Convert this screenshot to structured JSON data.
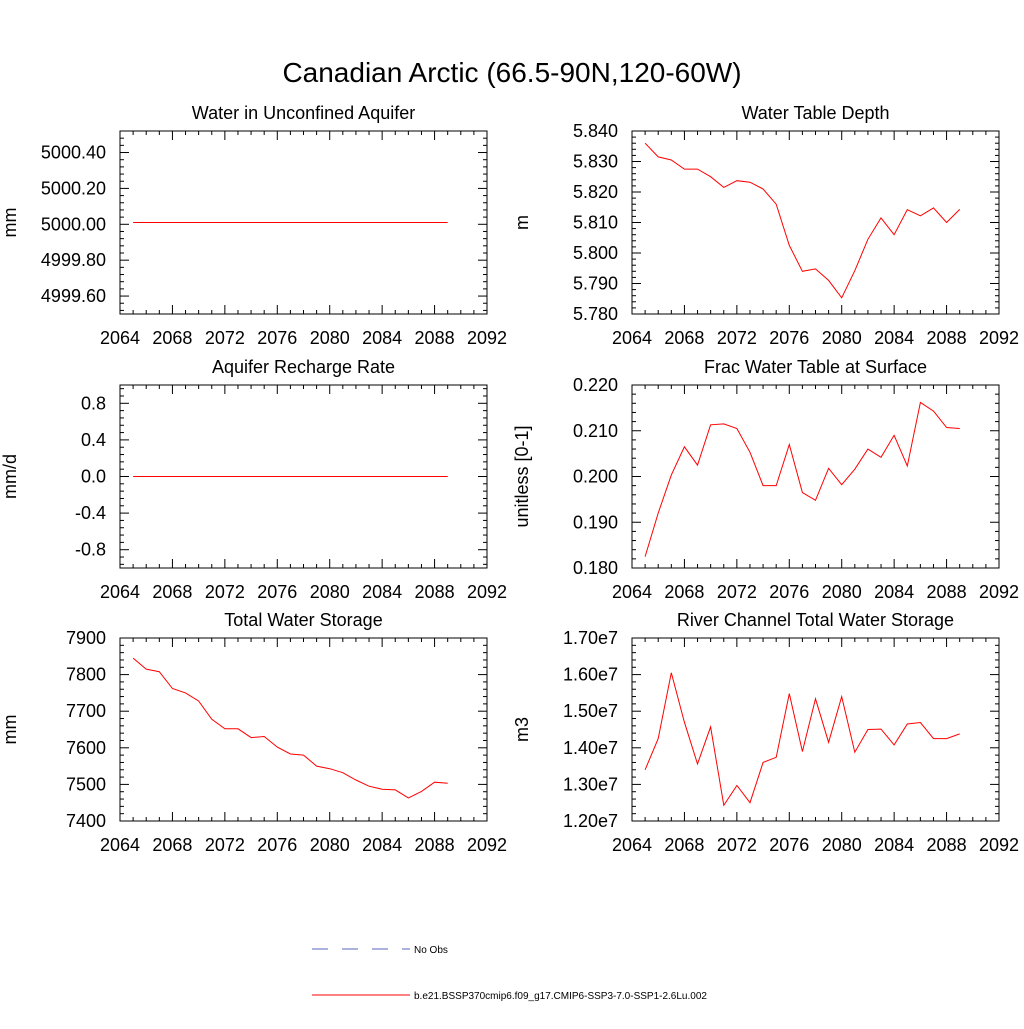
{
  "title": "Canadian Arctic (66.5-90N,120-60W)",
  "colors": {
    "model": "#ff0000",
    "obs": "#5566bb",
    "axis": "#000000"
  },
  "legend": {
    "obs_label": "No Obs",
    "model_label": "b.e21.BSSP370cmip6.f09_g17.CMIP6-SSP3-7.0-SSP1-2.6Lu.002"
  },
  "chart_data": [
    {
      "type": "line",
      "title": "Water in Unconfined Aquifer",
      "ylabel": "mm",
      "xlim": [
        2064,
        2092
      ],
      "ylim": [
        4999.5,
        5000.52
      ],
      "xticks": [
        2064,
        2068,
        2072,
        2076,
        2080,
        2084,
        2088,
        2092
      ],
      "yticks": [
        4999.6,
        4999.8,
        5000.0,
        5000.2,
        5000.4
      ],
      "ytick_labels": [
        "4999.60",
        "4999.80",
        "5000.00",
        "5000.20",
        "5000.40"
      ],
      "series": [
        {
          "x": [
            2065,
            2066,
            2067,
            2068,
            2069,
            2070,
            2071,
            2072,
            2073,
            2074,
            2075,
            2076,
            2077,
            2078,
            2079,
            2080,
            2081,
            2082,
            2083,
            2084,
            2085,
            2086,
            2087,
            2088,
            2089
          ],
          "y": [
            5000.01,
            5000.01,
            5000.01,
            5000.01,
            5000.01,
            5000.01,
            5000.01,
            5000.01,
            5000.01,
            5000.01,
            5000.01,
            5000.01,
            5000.01,
            5000.01,
            5000.01,
            5000.01,
            5000.01,
            5000.01,
            5000.01,
            5000.01,
            5000.01,
            5000.01,
            5000.01,
            5000.01,
            5000.01
          ]
        }
      ]
    },
    {
      "type": "line",
      "title": "Water Table Depth",
      "ylabel": "m",
      "xlim": [
        2064,
        2092
      ],
      "ylim": [
        5.78,
        5.84
      ],
      "xticks": [
        2064,
        2068,
        2072,
        2076,
        2080,
        2084,
        2088,
        2092
      ],
      "yticks": [
        5.78,
        5.79,
        5.8,
        5.81,
        5.82,
        5.83,
        5.84
      ],
      "ytick_labels": [
        "5.780",
        "5.790",
        "5.800",
        "5.810",
        "5.820",
        "5.830",
        "5.840"
      ],
      "series": [
        {
          "x": [
            2065,
            2066,
            2067,
            2068,
            2069,
            2070,
            2071,
            2072,
            2073,
            2074,
            2075,
            2076,
            2077,
            2078,
            2079,
            2080,
            2081,
            2082,
            2083,
            2084,
            2085,
            2086,
            2087,
            2088,
            2089
          ],
          "y": [
            5.836,
            5.8315,
            5.8305,
            5.8275,
            5.8275,
            5.825,
            5.8215,
            5.8237,
            5.8232,
            5.821,
            5.816,
            5.8025,
            5.794,
            5.7948,
            5.791,
            5.7853,
            5.7942,
            5.8045,
            5.8115,
            5.806,
            5.8142,
            5.8122,
            5.8148,
            5.81,
            5.8143
          ]
        }
      ]
    },
    {
      "type": "line",
      "title": "Aquifer Recharge Rate",
      "ylabel": "mm/d",
      "xlim": [
        2064,
        2092
      ],
      "ylim": [
        -1.0,
        1.0
      ],
      "xticks": [
        2064,
        2068,
        2072,
        2076,
        2080,
        2084,
        2088,
        2092
      ],
      "yticks": [
        -0.8,
        -0.4,
        0.0,
        0.4,
        0.8
      ],
      "ytick_labels": [
        "-0.8",
        "-0.4",
        "0.0",
        "0.4",
        "0.8"
      ],
      "series": [
        {
          "x": [
            2065,
            2066,
            2067,
            2068,
            2069,
            2070,
            2071,
            2072,
            2073,
            2074,
            2075,
            2076,
            2077,
            2078,
            2079,
            2080,
            2081,
            2082,
            2083,
            2084,
            2085,
            2086,
            2087,
            2088,
            2089
          ],
          "y": [
            0,
            0,
            0,
            0,
            0,
            0,
            0,
            0,
            0,
            0,
            0,
            0,
            0,
            0,
            0,
            0,
            0,
            0,
            0,
            0,
            0,
            0,
            0,
            0,
            0
          ]
        }
      ]
    },
    {
      "type": "line",
      "title": "Frac Water Table at Surface",
      "ylabel": "unitless [0-1]",
      "xlim": [
        2064,
        2092
      ],
      "ylim": [
        0.18,
        0.22
      ],
      "xticks": [
        2064,
        2068,
        2072,
        2076,
        2080,
        2084,
        2088,
        2092
      ],
      "yticks": [
        0.18,
        0.19,
        0.2,
        0.21,
        0.22
      ],
      "ytick_labels": [
        "0.180",
        "0.190",
        "0.200",
        "0.210",
        "0.220"
      ],
      "series": [
        {
          "x": [
            2065,
            2066,
            2067,
            2068,
            2069,
            2070,
            2071,
            2072,
            2073,
            2074,
            2075,
            2076,
            2077,
            2078,
            2079,
            2080,
            2081,
            2082,
            2083,
            2084,
            2085,
            2086,
            2087,
            2088,
            2089
          ],
          "y": [
            0.1825,
            0.192,
            0.2003,
            0.2065,
            0.2025,
            0.2113,
            0.2115,
            0.2105,
            0.2053,
            0.198,
            0.198,
            0.207,
            0.1965,
            0.1948,
            0.2018,
            0.1982,
            0.2016,
            0.206,
            0.2042,
            0.209,
            0.2023,
            0.2162,
            0.2143,
            0.2107,
            0.2105
          ]
        }
      ]
    },
    {
      "type": "line",
      "title": "Total Water Storage",
      "ylabel": "mm",
      "xlim": [
        2064,
        2092
      ],
      "ylim": [
        7400,
        7900
      ],
      "xticks": [
        2064,
        2068,
        2072,
        2076,
        2080,
        2084,
        2088,
        2092
      ],
      "yticks": [
        7400,
        7500,
        7600,
        7700,
        7800,
        7900
      ],
      "ytick_labels": [
        "7400",
        "7500",
        "7600",
        "7700",
        "7800",
        "7900"
      ],
      "series": [
        {
          "x": [
            2065,
            2066,
            2067,
            2068,
            2069,
            2070,
            2071,
            2072,
            2073,
            2074,
            2075,
            2076,
            2077,
            2078,
            2079,
            2080,
            2081,
            2082,
            2083,
            2084,
            2085,
            2086,
            2087,
            2088,
            2089
          ],
          "y": [
            7845,
            7815,
            7808,
            7762,
            7750,
            7728,
            7678,
            7652,
            7652,
            7628,
            7631,
            7602,
            7583,
            7580,
            7550,
            7543,
            7532,
            7512,
            7495,
            7487,
            7485,
            7463,
            7481,
            7506,
            7503
          ]
        }
      ]
    },
    {
      "type": "line",
      "title": "River Channel Total Water Storage",
      "ylabel": "m3",
      "xlim": [
        2064,
        2092
      ],
      "ylim": [
        12000000,
        17000000
      ],
      "xticks": [
        2064,
        2068,
        2072,
        2076,
        2080,
        2084,
        2088,
        2092
      ],
      "yticks": [
        12000000,
        13000000,
        14000000,
        15000000,
        16000000,
        17000000
      ],
      "ytick_labels": [
        "1.20e7",
        "1.30e7",
        "1.40e7",
        "1.50e7",
        "1.60e7",
        "1.70e7"
      ],
      "series": [
        {
          "x": [
            2065,
            2066,
            2067,
            2068,
            2069,
            2070,
            2071,
            2072,
            2073,
            2074,
            2075,
            2076,
            2077,
            2078,
            2079,
            2080,
            2081,
            2082,
            2083,
            2084,
            2085,
            2086,
            2087,
            2088,
            2089
          ],
          "y": [
            13400000,
            14250000,
            16050000,
            14700000,
            13560000,
            14570000,
            12430000,
            12970000,
            12500000,
            13600000,
            13740000,
            15480000,
            13900000,
            15340000,
            14150000,
            15400000,
            13880000,
            14500000,
            14510000,
            14080000,
            14650000,
            14690000,
            14250000,
            14250000,
            14380000
          ]
        }
      ]
    }
  ]
}
